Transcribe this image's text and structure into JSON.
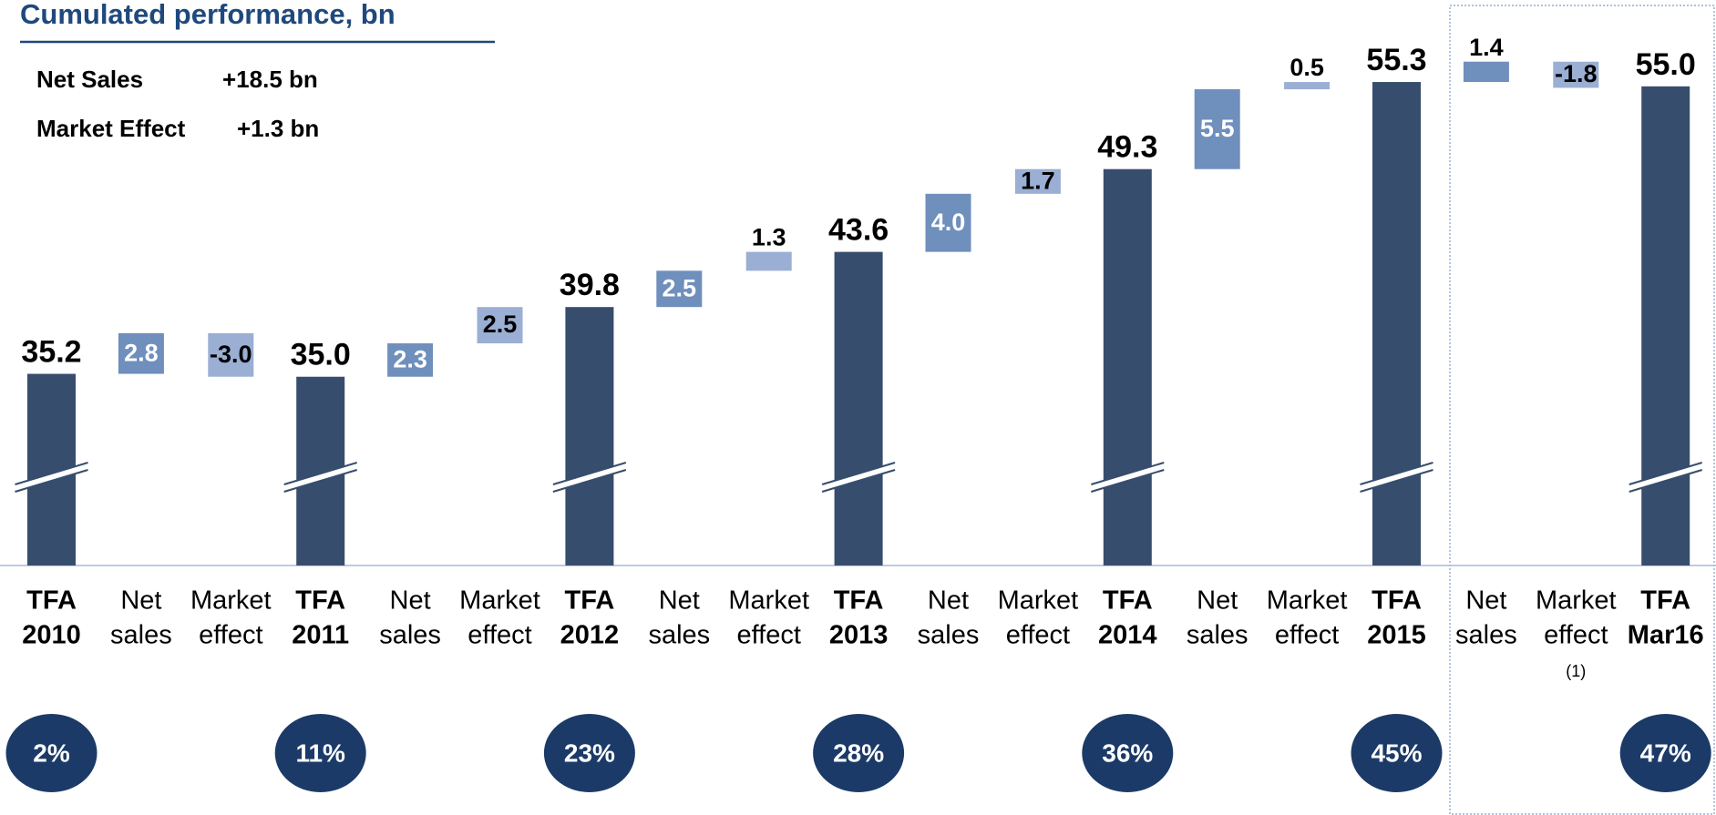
{
  "chart_data": {
    "type": "waterfall",
    "title": "Cumulated performance, bn",
    "summary": [
      {
        "label": "Net Sales",
        "value": "+18.5 bn"
      },
      {
        "label": "Market Effect",
        "value": "+1.3 bn"
      }
    ],
    "categories": [
      [
        "TFA",
        "2010"
      ],
      [
        "Net",
        "sales"
      ],
      [
        "Market",
        "effect"
      ],
      [
        "TFA",
        "2011"
      ],
      [
        "Net",
        "sales"
      ],
      [
        "Market",
        "effect"
      ],
      [
        "TFA",
        "2012"
      ],
      [
        "Net",
        "sales"
      ],
      [
        "Market",
        "effect"
      ],
      [
        "TFA",
        "2013"
      ],
      [
        "Net",
        "sales"
      ],
      [
        "Market",
        "effect"
      ],
      [
        "TFA",
        "2014"
      ],
      [
        "Net",
        "sales"
      ],
      [
        "Market",
        "effect"
      ],
      [
        "TFA",
        "2015"
      ],
      [
        "Net",
        "sales"
      ],
      [
        "Market",
        "effect",
        "(1)"
      ],
      [
        "TFA",
        "Mar16"
      ]
    ],
    "values": [
      35.2,
      2.8,
      -3.0,
      35.0,
      2.3,
      2.5,
      39.8,
      2.5,
      1.3,
      43.6,
      4.0,
      1.7,
      49.3,
      5.5,
      0.5,
      55.3,
      1.4,
      -1.8,
      55.0
    ],
    "value_labels": [
      "35.2",
      "2.8",
      "-3.0",
      "35.0",
      "2.3",
      "2.5",
      "39.8",
      "2.5",
      "1.3",
      "43.6",
      "4.0",
      "1.7",
      "49.3",
      "5.5",
      "0.5",
      "55.3",
      "1.4",
      "-1.8",
      "55.0"
    ],
    "total_color": "#374d6d",
    "colors": [
      "#374d6d",
      "#6f8fbc",
      "#9aafd3",
      "#374d6d",
      "#6f8fbc",
      "#9aafd3",
      "#374d6d",
      "#6f8fbc",
      "#9aafd3",
      "#374d6d",
      "#6f8fbc",
      "#9aafd3",
      "#374d6d",
      "#6f8fbc",
      "#9aafd3",
      "#374d6d",
      "#6f8fbc",
      "#9aafd3",
      "#374d6d"
    ],
    "label_colors": [
      "#000000",
      "#ffffff",
      "#000000",
      "#000000",
      "#ffffff",
      "#000000",
      "#000000",
      "#ffffff",
      "#000000",
      "#000000",
      "#ffffff",
      "#000000",
      "#000000",
      "#ffffff",
      "#000000",
      "#000000",
      "#ffffff",
      "#000000",
      "#000000"
    ],
    "ylim": [
      22,
      58
    ],
    "share": {
      "values": [
        2,
        11,
        23,
        28,
        36,
        45,
        47
      ],
      "value_labels": [
        "2%",
        "11%",
        "23%",
        "28%",
        "36%",
        "45%",
        "47%"
      ],
      "color": "#1b3a67"
    }
  }
}
